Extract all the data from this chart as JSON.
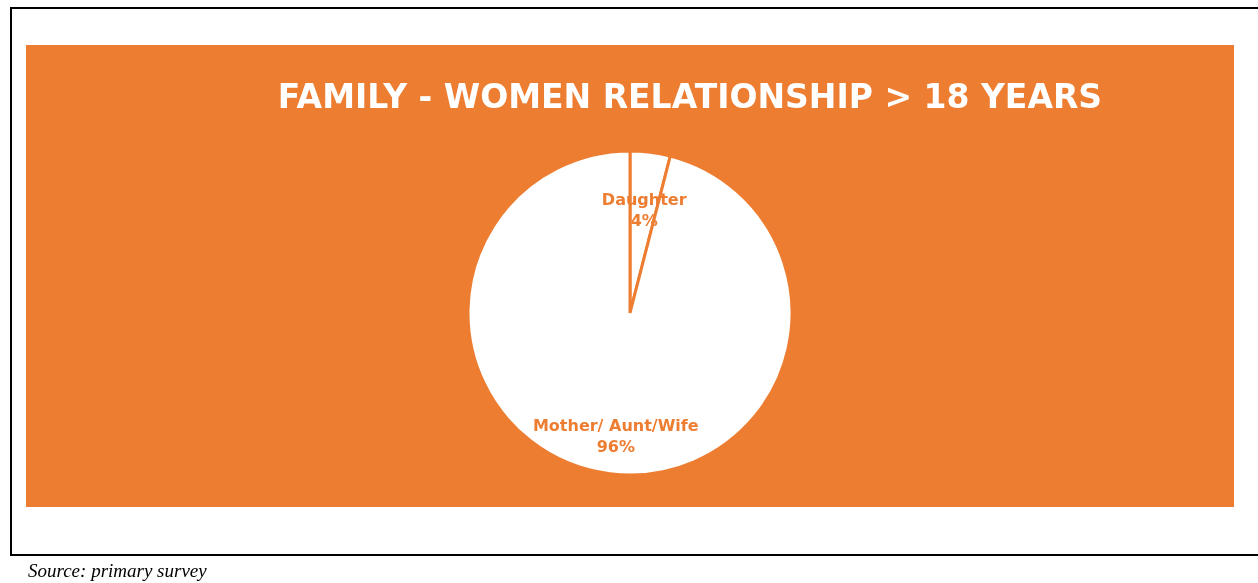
{
  "chart_data": {
    "type": "pie",
    "title": "FAMILY - WOMEN RELATIONSHIP > 18 YEARS",
    "categories": [
      "Daughter",
      "Mother/ Aunt/Wife"
    ],
    "values": [
      4,
      96
    ],
    "colors": [
      "#ffffff",
      "#ffffff"
    ],
    "value_labels": [
      "4%",
      "96%"
    ],
    "legend": false,
    "annotations": [
      "Source: primary survey"
    ]
  }
}
